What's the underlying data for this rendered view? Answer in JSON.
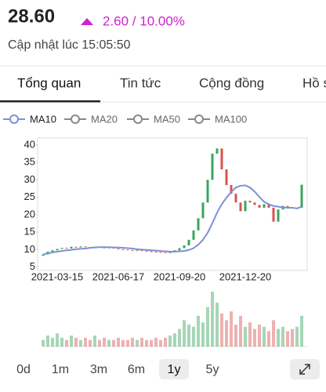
{
  "header": {
    "price": "28.60",
    "change": "2.60 / 10.00%",
    "updated": "Cập nhật lúc 15:05:50"
  },
  "tabs": {
    "items": [
      "Tổng quan",
      "Tin tức",
      "Cộng đồng",
      "Hồ sơ"
    ],
    "active": 0
  },
  "chart_data": {
    "type": "candlestick",
    "categories": [
      null,
      null,
      null,
      "2021-03-15",
      null,
      null,
      null,
      null,
      null,
      null,
      null,
      null,
      null,
      null,
      null,
      null,
      "2021-06-17",
      null,
      null,
      null,
      null,
      null,
      null,
      null,
      null,
      null,
      null,
      null,
      null,
      "2021-09-20",
      null,
      null,
      null,
      null,
      null,
      null,
      null,
      null,
      null,
      null,
      null,
      null,
      null,
      "2021-12-20",
      null,
      null,
      null,
      null,
      null,
      null,
      null,
      null,
      null,
      null,
      null,
      null
    ],
    "open": [
      8.2,
      8.6,
      9.4,
      9.8,
      10.2,
      10.5,
      10.3,
      10.8,
      10.6,
      10.9,
      10.7,
      10.5,
      10.8,
      10.6,
      10.4,
      10.6,
      10.3,
      10.1,
      10.0,
      9.9,
      9.7,
      9.8,
      9.6,
      9.5,
      9.4,
      9.3,
      9.2,
      9.0,
      9.3,
      9.8,
      10.4,
      11.2,
      12.8,
      15.5,
      19.0,
      23.5,
      30.0,
      37.5,
      39.0,
      33.0,
      28.5,
      26.0,
      23.5,
      21.0,
      24.0,
      23.5,
      22.8,
      22.0,
      23.0,
      22.0,
      18.0,
      21.5,
      22.5,
      22.0,
      21.8,
      22.0
    ],
    "close": [
      8.6,
      9.4,
      9.8,
      10.2,
      10.5,
      10.3,
      10.8,
      10.6,
      10.9,
      10.7,
      10.5,
      10.8,
      10.6,
      10.4,
      10.6,
      10.3,
      10.1,
      10.0,
      9.9,
      9.7,
      9.8,
      9.6,
      9.5,
      9.4,
      9.3,
      9.2,
      9.0,
      9.3,
      9.8,
      10.4,
      11.2,
      12.8,
      15.5,
      19.0,
      23.5,
      30.0,
      37.5,
      39.0,
      33.0,
      28.5,
      26.0,
      23.5,
      21.0,
      24.0,
      23.5,
      22.8,
      22.0,
      23.0,
      22.0,
      18.0,
      21.5,
      22.5,
      22.0,
      21.8,
      22.0,
      28.6
    ],
    "up_color": "#3aa55d",
    "down_color": "#d9534f",
    "series": [
      {
        "name": "MA10",
        "color": "#7f8fd6",
        "values": [
          8.6,
          8.9,
          9.2,
          9.4,
          9.6,
          9.8,
          9.9,
          10.1,
          10.2,
          10.3,
          10.5,
          10.6,
          10.7,
          10.7,
          10.7,
          10.6,
          10.6,
          10.5,
          10.4,
          10.3,
          10.1,
          10.0,
          9.9,
          9.8,
          9.7,
          9.6,
          9.5,
          9.4,
          9.4,
          9.5,
          9.6,
          9.9,
          10.4,
          11.4,
          12.8,
          14.8,
          17.6,
          20.6,
          23.0,
          24.9,
          26.5,
          27.8,
          28.3,
          28.4,
          27.8,
          26.6,
          25.1,
          23.7,
          23.0,
          22.5,
          22.3,
          22.1,
          22.0,
          22.0,
          21.8,
          22.3
        ]
      },
      {
        "name": "MA20",
        "color": "#888888"
      },
      {
        "name": "MA50",
        "color": "#888888"
      },
      {
        "name": "MA100",
        "color": "#888888"
      }
    ],
    "ylim": [
      4,
      42
    ],
    "yticks": [
      5,
      10,
      15,
      20,
      25,
      30,
      35,
      40
    ],
    "volume": [
      3,
      5,
      4,
      6,
      4,
      3,
      5,
      4,
      3,
      4,
      3,
      5,
      3,
      4,
      3,
      3,
      4,
      3,
      3,
      4,
      3,
      4,
      3,
      3,
      4,
      3,
      4,
      5,
      6,
      8,
      12,
      10,
      9,
      14,
      11,
      18,
      25,
      20,
      15,
      12,
      16,
      10,
      14,
      9,
      11,
      8,
      10,
      9,
      7,
      12,
      8,
      9,
      7,
      8,
      9,
      14
    ]
  },
  "periods": {
    "items": [
      "0d",
      "1m",
      "3m",
      "6m",
      "1y",
      "5y"
    ],
    "active": 4
  }
}
